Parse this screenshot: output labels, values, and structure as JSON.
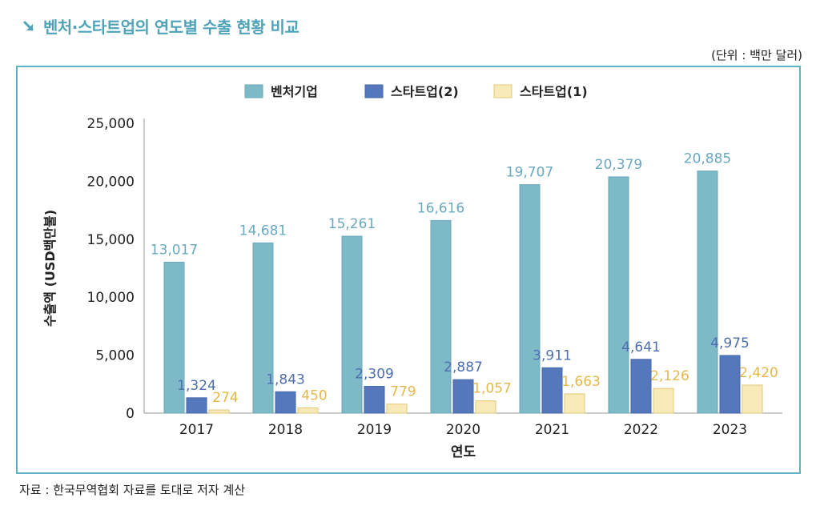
{
  "title": "벤처·스타트업의 연도별 수출 현황 비교",
  "unit_note": "(단위 : 백만 달러)",
  "source_note": "자료 : 한국무역협회 자료를 토대로 저자 계산",
  "icon": "arrow-down-right-icon",
  "colors": {
    "title": "#4fa3b8",
    "panel_border": "#5fb3c4"
  },
  "chart_data": {
    "type": "bar",
    "xlabel": "연도",
    "ylabel": "수출액 (USD백만불)",
    "categories": [
      "2017",
      "2018",
      "2019",
      "2020",
      "2021",
      "2022",
      "2023"
    ],
    "ylim": [
      0,
      25000
    ],
    "yticks": [
      0,
      5000,
      10000,
      15000,
      20000,
      25000
    ],
    "ytick_labels": [
      "0",
      "5,000",
      "10,000",
      "15,000",
      "20,000",
      "25,000"
    ],
    "legend_position": "top-center",
    "series": [
      {
        "name": "벤처기업",
        "color": "#7db9c6",
        "stroke": "#6aa9b8",
        "label_color": "#6aa9c0",
        "values": [
          13017,
          14681,
          15261,
          16616,
          19707,
          20379,
          20885
        ],
        "labels": [
          "13,017",
          "14,681",
          "15,261",
          "16,616",
          "19,707",
          "20,379",
          "20,885"
        ]
      },
      {
        "name": "스타트업(2)",
        "color": "#5577bb",
        "stroke": "#4666aa",
        "label_color": "#4f6fb0",
        "values": [
          1324,
          1843,
          2309,
          2887,
          3911,
          4641,
          4975
        ],
        "labels": [
          "1,324",
          "1,843",
          "2,309",
          "2,887",
          "3,911",
          "4,641",
          "4,975"
        ]
      },
      {
        "name": "스타트업(1)",
        "color": "#f8eab8",
        "stroke": "#e2c979",
        "label_color": "#e6b84c",
        "values": [
          274,
          450,
          779,
          1057,
          1663,
          2126,
          2420
        ],
        "labels": [
          "274",
          "450",
          "779",
          "1,057",
          "1,663",
          "2,126",
          "2,420"
        ]
      }
    ]
  }
}
